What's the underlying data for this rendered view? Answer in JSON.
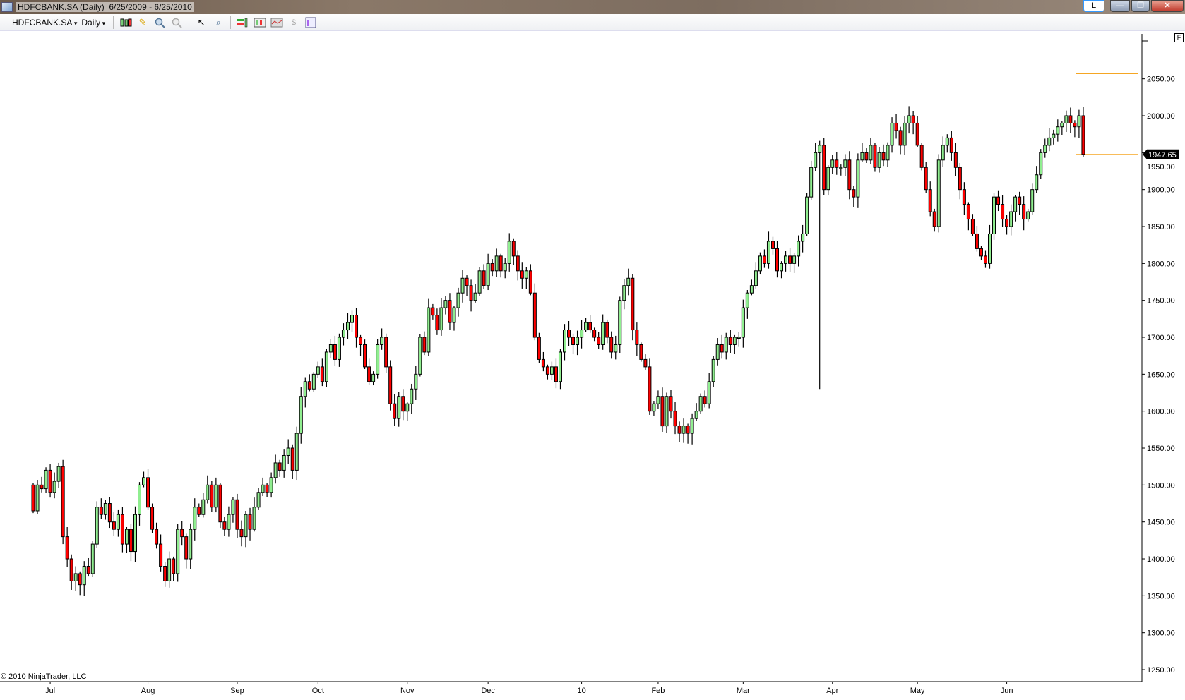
{
  "window": {
    "title": "HDFCBANK.SA (Daily)  6/25/2009 - 6/25/2010",
    "buttons": {
      "l": "L",
      "minimize": "—",
      "restore": "❐",
      "close": "✕"
    }
  },
  "toolbar": {
    "instrument": "HDFCBANK.SA",
    "interval": "Daily",
    "icons": [
      "candlestick-style-icon",
      "pencil-draw-icon",
      "zoom-in-icon",
      "zoom-out-icon",
      "cursor-select-icon",
      "magnifier-icon",
      "indicators-icon",
      "strategies-icon",
      "chart-data-icon",
      "dollar-order-icon",
      "properties-icon"
    ]
  },
  "chart_data": {
    "type": "candlestick",
    "symbol": "HDFCBANK.SA",
    "ylim": [
      1230,
      2100
    ],
    "y_ticks": [
      "2050.00",
      "2000.00",
      "1950.00",
      "1900.00",
      "1850.00",
      "1800.00",
      "1750.00",
      "1700.00",
      "1650.00",
      "1600.00",
      "1550.00",
      "1500.00",
      "1450.00",
      "1400.00",
      "1350.00",
      "1300.00",
      "1250.00"
    ],
    "x_ticks": [
      {
        "label": "Jul",
        "index": 4
      },
      {
        "label": "Aug",
        "index": 27
      },
      {
        "label": "Sep",
        "index": 48
      },
      {
        "label": "Oct",
        "index": 67
      },
      {
        "label": "Nov",
        "index": 88
      },
      {
        "label": "Dec",
        "index": 107
      },
      {
        "label": "10",
        "index": 129
      },
      {
        "label": "Feb",
        "index": 147
      },
      {
        "label": "Mar",
        "index": 167
      },
      {
        "label": "Apr",
        "index": 188
      },
      {
        "label": "May",
        "index": 208
      },
      {
        "label": "Jun",
        "index": 229
      }
    ],
    "first_open": 1500,
    "close": [
      1465,
      1500,
      1495,
      1520,
      1490,
      1505,
      1525,
      1430,
      1400,
      1370,
      1380,
      1365,
      1390,
      1380,
      1420,
      1470,
      1460,
      1475,
      1450,
      1440,
      1460,
      1420,
      1440,
      1410,
      1460,
      1500,
      1510,
      1470,
      1440,
      1420,
      1390,
      1370,
      1400,
      1380,
      1440,
      1430,
      1400,
      1440,
      1470,
      1460,
      1480,
      1500,
      1470,
      1500,
      1450,
      1440,
      1460,
      1480,
      1440,
      1430,
      1460,
      1440,
      1470,
      1490,
      1500,
      1490,
      1510,
      1530,
      1520,
      1540,
      1550,
      1520,
      1570,
      1620,
      1640,
      1630,
      1650,
      1660,
      1640,
      1680,
      1690,
      1670,
      1700,
      1710,
      1720,
      1730,
      1700,
      1690,
      1660,
      1640,
      1650,
      1690,
      1700,
      1660,
      1610,
      1590,
      1620,
      1600,
      1610,
      1630,
      1650,
      1700,
      1680,
      1740,
      1730,
      1710,
      1740,
      1750,
      1720,
      1740,
      1760,
      1780,
      1770,
      1750,
      1760,
      1790,
      1770,
      1800,
      1790,
      1810,
      1790,
      1800,
      1830,
      1810,
      1790,
      1780,
      1790,
      1760,
      1700,
      1670,
      1660,
      1650,
      1660,
      1640,
      1680,
      1710,
      1700,
      1690,
      1700,
      1710,
      1720,
      1710,
      1700,
      1690,
      1720,
      1700,
      1680,
      1690,
      1750,
      1770,
      1780,
      1710,
      1690,
      1670,
      1660,
      1600,
      1610,
      1620,
      1580,
      1620,
      1600,
      1580,
      1570,
      1580,
      1570,
      1590,
      1600,
      1620,
      1610,
      1640,
      1670,
      1690,
      1680,
      1700,
      1690,
      1700,
      1700,
      1740,
      1760,
      1770,
      1790,
      1810,
      1800,
      1830,
      1820,
      1790,
      1800,
      1810,
      1800,
      1810,
      1830,
      1840,
      1890,
      1930,
      1950,
      1960,
      1900,
      1930,
      1940,
      1930,
      1930,
      1940,
      1900,
      1890,
      1940,
      1950,
      1940,
      1960,
      1930,
      1950,
      1940,
      1960,
      1990,
      1980,
      1960,
      1990,
      2000,
      1990,
      1960,
      1930,
      1900,
      1870,
      1850,
      1940,
      1960,
      1970,
      1950,
      1930,
      1900,
      1880,
      1860,
      1840,
      1820,
      1810,
      1800,
      1840,
      1890,
      1880,
      1860,
      1850,
      1870,
      1890,
      1880,
      1860,
      1870,
      1900,
      1920,
      1950,
      1960,
      1970,
      1975,
      1985,
      1990,
      2000,
      1990,
      1985,
      2000,
      1947.65
    ],
    "low_overrides": {
      "185": 1630
    },
    "last_price": "1947.65",
    "horizontal_lines": [
      {
        "price": 2057,
        "color": "#f5a623"
      },
      {
        "price": 1947.65,
        "color": "#f5a623"
      }
    ],
    "colors": {
      "up": "#90ee90",
      "down": "#ff0000",
      "outline": "#000000",
      "marker_bg": "#000000",
      "marker_text": "#ffffff"
    }
  },
  "footer": {
    "copyright": "© 2010 NinjaTrader, LLC"
  },
  "panel_button": "F"
}
